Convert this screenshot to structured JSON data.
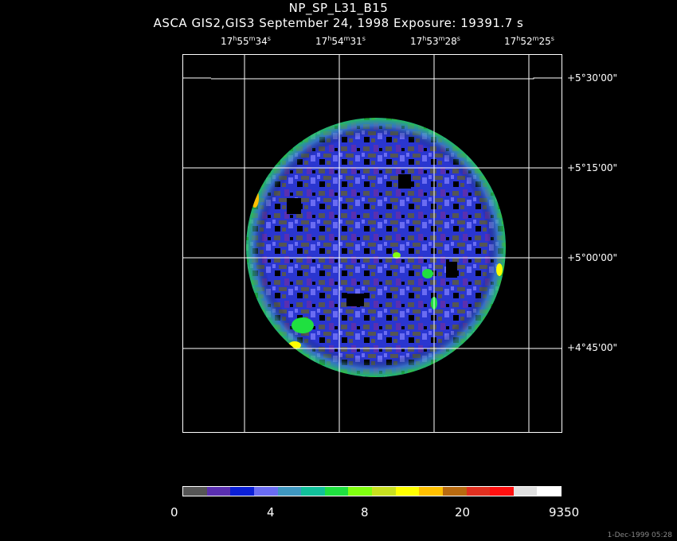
{
  "header": {
    "title": "NP_SP_L31_B15",
    "subtitle": "ASCA GIS2,GIS3 September 24, 1998 Exposure: 19391.7 s"
  },
  "ra_ticks": [
    {
      "h": "17",
      "m": "55",
      "s": "34"
    },
    {
      "h": "17",
      "m": "54",
      "s": "31"
    },
    {
      "h": "17",
      "m": "53",
      "s": "28"
    },
    {
      "h": "17",
      "m": "52",
      "s": "25"
    }
  ],
  "dec_ticks": [
    "+5°30'00\"",
    "+5°15'00\"",
    "+5°00'00\"",
    "+4°45'00\""
  ],
  "colorbar": {
    "labels": [
      "0",
      "4",
      "8",
      "20",
      "9350"
    ],
    "colors": [
      "#555555",
      "#5a2fb0",
      "#0b1fd6",
      "#6a6cf2",
      "#3f97c0",
      "#11c09a",
      "#1fe040",
      "#80ff10",
      "#c8e020",
      "#ffff00",
      "#ffc000",
      "#b86a10",
      "#e03020",
      "#ff1010",
      "#e0e0e0",
      "#ffffff"
    ]
  },
  "footer": {
    "timestamp": "1-Dec-1999 05:28"
  }
}
